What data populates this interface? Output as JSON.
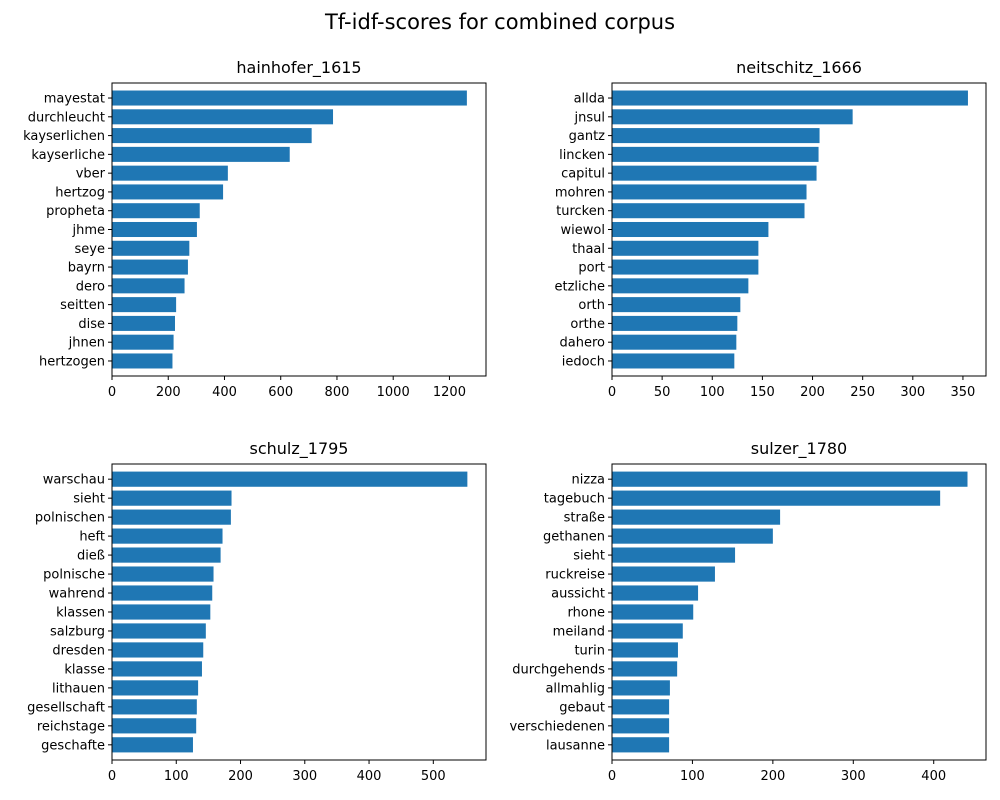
{
  "figure": {
    "title": "Tf-idf-scores for combined corpus"
  },
  "chart_data": [
    {
      "type": "bar",
      "orientation": "horizontal",
      "title": "hainhofer_1615",
      "xlim": [
        0,
        1330
      ],
      "xticks": [
        0,
        200,
        400,
        600,
        800,
        1000,
        1200
      ],
      "color": "#1f77b4",
      "categories": [
        "mayestat",
        "durchleucht",
        "kayserlichen",
        "kayserliche",
        "vber",
        "hertzog",
        "propheta",
        "jhme",
        "seye",
        "bayrn",
        "dero",
        "seitten",
        "dise",
        "jhnen",
        "hertzogen"
      ],
      "values": [
        1262,
        786,
        710,
        632,
        412,
        395,
        312,
        302,
        275,
        270,
        258,
        228,
        224,
        219,
        215
      ]
    },
    {
      "type": "bar",
      "orientation": "horizontal",
      "title": "neitschitz_1666",
      "xlim": [
        0,
        373
      ],
      "xticks": [
        0,
        50,
        100,
        150,
        200,
        250,
        300,
        350
      ],
      "color": "#1f77b4",
      "categories": [
        "allda",
        "jnsul",
        "gantz",
        "lincken",
        "capitul",
        "mohren",
        "turcken",
        "wiewol",
        "thaal",
        "port",
        "etzliche",
        "orth",
        "orthe",
        "dahero",
        "iedoch"
      ],
      "values": [
        355,
        240,
        207,
        206,
        204,
        194,
        192,
        156,
        146,
        146,
        136,
        128,
        125,
        124,
        122
      ]
    },
    {
      "type": "bar",
      "orientation": "horizontal",
      "title": "schulz_1795",
      "xlim": [
        0,
        582
      ],
      "xticks": [
        0,
        100,
        200,
        300,
        400,
        500
      ],
      "color": "#1f77b4",
      "categories": [
        "warschau",
        "sieht",
        "polnischen",
        "heft",
        "dieß",
        "polnische",
        "wahrend",
        "klassen",
        "salzburg",
        "dresden",
        "klasse",
        "lithauen",
        "gesellschaft",
        "reichstage",
        "geschafte"
      ],
      "values": [
        553,
        186,
        185,
        172,
        169,
        158,
        156,
        153,
        146,
        142,
        140,
        134,
        132,
        131,
        126
      ]
    },
    {
      "type": "bar",
      "orientation": "horizontal",
      "title": "sulzer_1780",
      "xlim": [
        0,
        465
      ],
      "xticks": [
        0,
        100,
        200,
        300,
        400
      ],
      "color": "#1f77b4",
      "categories": [
        "nizza",
        "tagebuch",
        "straße",
        "gethanen",
        "sieht",
        "ruckreise",
        "aussicht",
        "rhone",
        "meiland",
        "turin",
        "durchgehends",
        "allmahlig",
        "gebaut",
        "verschiedenen",
        "lausanne"
      ],
      "values": [
        442,
        408,
        209,
        200,
        153,
        128,
        107,
        101,
        88,
        82,
        81,
        72,
        71,
        71,
        71
      ]
    }
  ]
}
